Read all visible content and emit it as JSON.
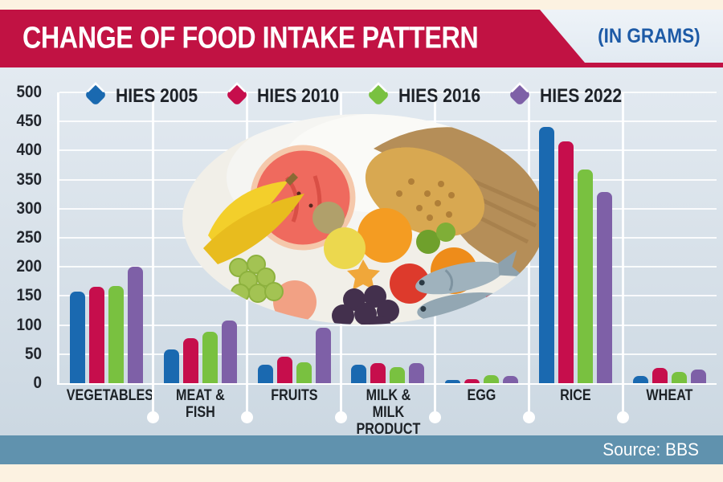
{
  "header": {
    "title": "CHANGE OF FOOD INTAKE PATTERN",
    "unit_label": "(IN GRAMS)"
  },
  "source": {
    "label": "Source: BBS"
  },
  "colors": {
    "header_red": "#c11243",
    "unit_text_blue": "#1d5aa6",
    "chart_bg": "#d9e2ea",
    "gridline": "#ffffff",
    "source_bar": "#6092ae",
    "cream_border": "#fcf2e1",
    "series_2005": "#1a69b0",
    "series_2010": "#c60e4c",
    "series_2016": "#79c140",
    "series_2022": "#7e60a7"
  },
  "legend_icon": "diamond-marker",
  "chart_data": {
    "type": "bar",
    "title": "CHANGE OF FOOD INTAKE PATTERN",
    "unit": "grams",
    "categories": [
      "VEGETABLES",
      "MEAT & FISH",
      "FRUITS",
      "MILK & MILK PRODUCT",
      "EGG",
      "RICE",
      "WHEAT"
    ],
    "series": [
      {
        "name": "HIES 2005",
        "color": "#1a69b0",
        "values": [
          157,
          58,
          32,
          32,
          5,
          440,
          12
        ]
      },
      {
        "name": "HIES 2010",
        "color": "#c60e4c",
        "values": [
          166,
          78,
          45,
          34,
          7,
          416,
          26
        ]
      },
      {
        "name": "HIES 2016",
        "color": "#79c140",
        "values": [
          167,
          88,
          36,
          27,
          14,
          367,
          20
        ]
      },
      {
        "name": "HIES 2022",
        "color": "#7e60a7",
        "values": [
          200,
          108,
          95,
          35,
          13,
          329,
          24
        ]
      }
    ],
    "ylim": [
      0,
      500
    ],
    "ytick_step": 50,
    "yticks": [
      0,
      50,
      100,
      150,
      200,
      250,
      300,
      350,
      400,
      450,
      500
    ],
    "grid": true,
    "legend_position": "top",
    "ylabel": "",
    "xlabel": ""
  }
}
